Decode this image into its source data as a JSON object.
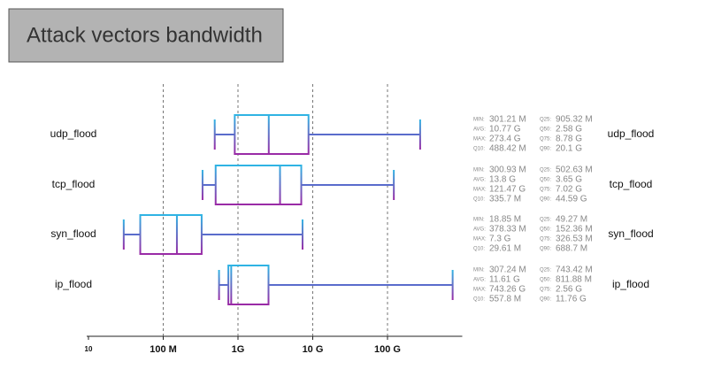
{
  "chart_data": {
    "type": "boxplot",
    "title": "Attack vectors bandwidth",
    "log_x": true,
    "grid": true,
    "xlim": [
      10,
      1000000
    ],
    "xticks": [
      10,
      {
        "value": 100,
        "label": "100 M"
      },
      {
        "value": 1000,
        "label": "1G"
      },
      {
        "value": 10000,
        "label": "10 G"
      },
      {
        "value": 100000,
        "label": "100 G"
      }
    ],
    "colors": {
      "top": "#2fb4e4",
      "bottom": "#9a2aa6"
    },
    "stat_names": {
      "min": "MIN:",
      "avg": "AVG:",
      "max": "MAX:",
      "q10": "Q10:",
      "q25": "Q25:",
      "q50": "Q50:",
      "q75": "Q75:",
      "q90": "Q90:"
    },
    "boxes": [
      {
        "name": "udp_flood",
        "min": 301.21,
        "avg": 10770,
        "max": 273400,
        "q10": 488.42,
        "q25": 905.32,
        "q50": 2580,
        "q75": 8780,
        "q90": 20100,
        "value_labels": {
          "min": "301.21 M",
          "avg": "10.77 G",
          "max": "273.4 G",
          "q10": "488.42 M",
          "q25": "905.32 M",
          "q50": "2.58 G",
          "q75": "8.78 G",
          "q90": "20.1 G"
        }
      },
      {
        "name": "tcp_flood",
        "min": 300.93,
        "avg": 13800,
        "max": 121470,
        "q10": 335.7,
        "q25": 502.63,
        "q50": 3650,
        "q75": 7020,
        "q90": 44590,
        "value_labels": {
          "min": "300.93 M",
          "avg": "13.8 G",
          "max": "121.47 G",
          "q10": "335.7 M",
          "q25": "502.63 M",
          "q50": "3.65 G",
          "q75": "7.02 G",
          "q90": "44.59 G"
        }
      },
      {
        "name": "syn_flood",
        "min": 18.85,
        "avg": 378.33,
        "max": 7300,
        "q10": 29.61,
        "q25": 49.27,
        "q50": 152.36,
        "q75": 326.53,
        "q90": 688.7,
        "value_labels": {
          "min": "18.85 M",
          "avg": "378.33 M",
          "max": "7.3 G",
          "q10": "29.61 M",
          "q25": "49.27 M",
          "q50": "152.36 M",
          "q75": "326.53 M",
          "q90": "688.7 M"
        }
      },
      {
        "name": "ip_flood",
        "min": 307.24,
        "avg": 11610,
        "max": 743260,
        "q10": 557.8,
        "q25": 743.42,
        "q50": 811.88,
        "q75": 2560,
        "q90": 11760,
        "value_labels": {
          "min": "307.24 M",
          "avg": "11.61 G",
          "max": "743.26 G",
          "q10": "557.8 M",
          "q25": "743.42 M",
          "q50": "811.88 M",
          "q75": "2.56 G",
          "q90": "11.76 G"
        }
      }
    ]
  }
}
